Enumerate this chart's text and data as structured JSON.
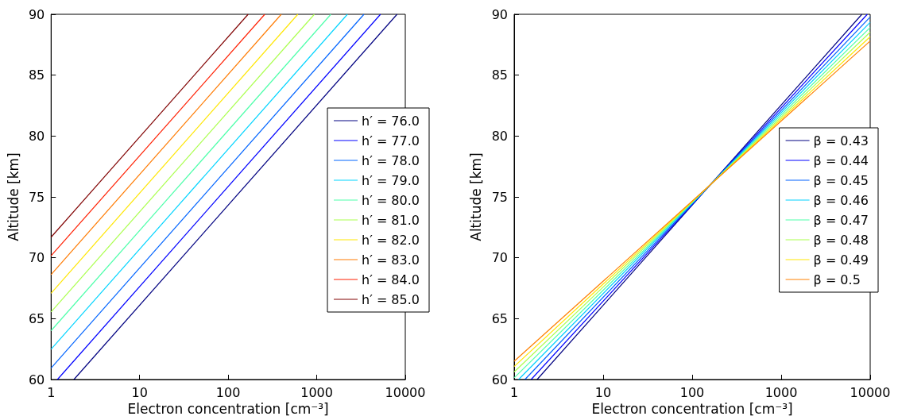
{
  "chart_data": [
    {
      "type": "line",
      "xlabel": "Electron concentration [cm⁻³]",
      "ylabel": "Altitude [km]",
      "log": "x",
      "xlim": [
        1,
        10000
      ],
      "xticks": [
        1,
        10,
        100,
        1000,
        10000
      ],
      "ylim": [
        60,
        90
      ],
      "yticks": [
        60,
        65,
        70,
        75,
        80,
        85,
        90
      ],
      "legend": "right",
      "series": [
        {
          "name": "h′ = 76.0",
          "color": "#000080",
          "x": [
            1.81,
            8070
          ],
          "values": [
            60,
            90
          ]
        },
        {
          "name": "h′ = 77.0",
          "color": "#0000ff",
          "x": [
            1.18,
            5250
          ],
          "values": [
            60,
            90
          ]
        },
        {
          "name": "h′ = 78.0",
          "color": "#0064ff",
          "x": [
            1,
            3415
          ],
          "values": [
            60.94,
            90
          ]
        },
        {
          "name": "h′ = 79.0",
          "color": "#00d4ff",
          "x": [
            1,
            2222
          ],
          "values": [
            62.48,
            90
          ]
        },
        {
          "name": "h′ = 80.0",
          "color": "#4dffaa",
          "x": [
            1,
            1445
          ],
          "values": [
            64.01,
            90
          ]
        },
        {
          "name": "h′ = 81.0",
          "color": "#aaff4d",
          "x": [
            1,
            940
          ],
          "values": [
            65.55,
            90
          ]
        },
        {
          "name": "h′ = 82.0",
          "color": "#ffe600",
          "x": [
            1,
            612
          ],
          "values": [
            67.09,
            90
          ]
        },
        {
          "name": "h′ = 83.0",
          "color": "#ff7a00",
          "x": [
            1,
            398
          ],
          "values": [
            68.62,
            90
          ]
        },
        {
          "name": "h′ = 84.0",
          "color": "#ff1e00",
          "x": [
            1,
            259
          ],
          "values": [
            70.16,
            90
          ]
        },
        {
          "name": "h′ = 85.0",
          "color": "#800000",
          "x": [
            1,
            168
          ],
          "values": [
            71.69,
            90
          ]
        }
      ]
    },
    {
      "type": "line",
      "xlabel": "Electron concentration [cm⁻³]",
      "ylabel": "Altitude [km]",
      "log": "x",
      "xlim": [
        1,
        10000
      ],
      "xticks": [
        1,
        10,
        100,
        1000,
        10000
      ],
      "ylim": [
        60,
        90
      ],
      "yticks": [
        60,
        65,
        70,
        75,
        80,
        85,
        90
      ],
      "legend": "right",
      "series": [
        {
          "name": "β = 0.43",
          "color": "#000080",
          "x": [
            1.81,
            8070
          ],
          "values": [
            60,
            90
          ]
        },
        {
          "name": "β = 0.44",
          "color": "#0000ff",
          "x": [
            1.55,
            9280
          ],
          "values": [
            60,
            90
          ]
        },
        {
          "name": "β = 0.45",
          "color": "#0060ff",
          "x": [
            1.32,
            10000
          ],
          "values": [
            60,
            89.78
          ]
        },
        {
          "name": "β = 0.46",
          "color": "#00d0ff",
          "x": [
            1.12,
            10000
          ],
          "values": [
            60,
            89.34
          ]
        },
        {
          "name": "β = 0.47",
          "color": "#4dffaa",
          "x": [
            1,
            10000
          ],
          "values": [
            60.14,
            88.92
          ]
        },
        {
          "name": "β = 0.48",
          "color": "#aaff4d",
          "x": [
            1,
            10000
          ],
          "values": [
            60.62,
            88.53
          ]
        },
        {
          "name": "β = 0.49",
          "color": "#ffe600",
          "x": [
            1,
            10000
          ],
          "values": [
            61.07,
            88.16
          ]
        },
        {
          "name": "β = 0.5",
          "color": "#ff8000",
          "x": [
            1,
            10000
          ],
          "values": [
            61.5,
            87.81
          ]
        }
      ]
    }
  ]
}
